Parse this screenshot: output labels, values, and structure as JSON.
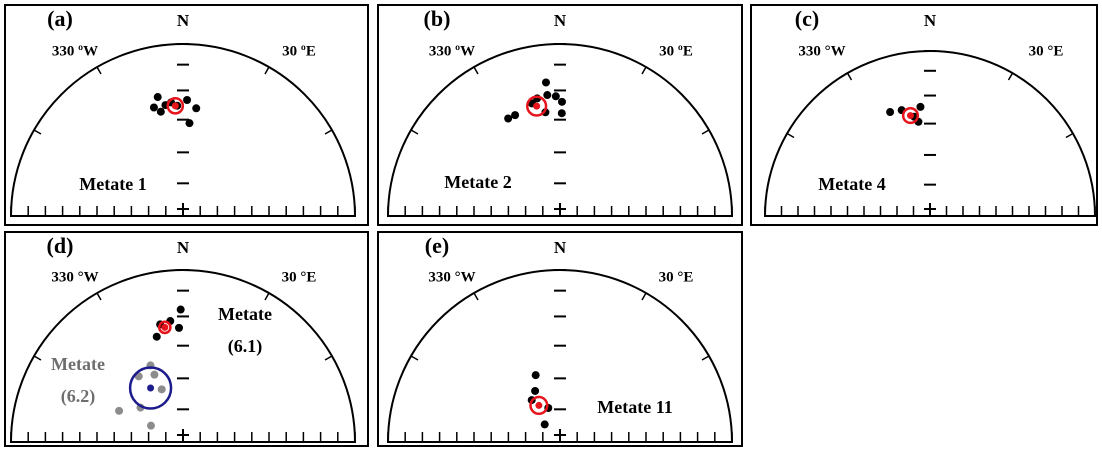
{
  "chart_data": [
    {
      "type": "stereonet",
      "panel_label": "(a)",
      "north_label": "N",
      "west_label": "330 ºW",
      "east_label": "30 ºE",
      "series": [
        {
          "label": [
            "Metate 1"
          ],
          "label_color": "#000000",
          "color": "#000000",
          "x": [
            348,
            345,
            351,
            354,
            357,
            2,
            7,
            4,
            348
          ],
          "values": [
            30,
            35,
            35,
            34,
            36,
            33,
            37,
            45,
            38
          ],
          "mean": {
            "x": 356,
            "value": 36,
            "a95": 4,
            "color": "#e8141c",
            "dot_color": "#e8141c"
          }
        }
      ]
    },
    {
      "type": "stereonet",
      "panel_label": "(b)",
      "north_label": "N",
      "west_label": "330 ºW",
      "east_label": "30 ºE",
      "series": [
        {
          "label": [
            "Metate 2"
          ],
          "label_color": "#000000",
          "color": "#000000",
          "x": [
            354,
            354,
            349,
            358,
            346,
            1,
            1,
            352,
            336,
            332
          ],
          "values": [
            23,
            30,
            31,
            31,
            33,
            34,
            40,
            39,
            36,
            36
          ],
          "mean": {
            "x": 348,
            "value": 35,
            "a95": 5,
            "color": "#e8141c",
            "dot_color": "#e8141c"
          }
        }
      ]
    },
    {
      "type": "stereonet",
      "panel_label": "(c)",
      "north_label": "N",
      "west_label": "330 °W",
      "east_label": "30 °E",
      "series": [
        {
          "label": [
            "Metate 4"
          ],
          "label_color": "#000000",
          "color": "#000000",
          "x": [
            339,
            345,
            355,
            351,
            353
          ],
          "values": [
            33,
            34,
            34,
            39,
            42
          ],
          "mean": {
            "x": 349,
            "value": 38,
            "a95": 4,
            "color": "#e8141c",
            "dot_color": "#e8141c"
          }
        }
      ]
    },
    {
      "type": "stereonet",
      "panel_label": "(d)",
      "north_label": "N",
      "west_label": "330 °W",
      "east_label": "30 °E",
      "series": [
        {
          "label": [
            "Metate",
            "(6.1)"
          ],
          "label_color": "#000000",
          "color": "#000000",
          "x": [
            359,
            349,
            354,
            358,
            346
          ],
          "values": [
            24,
            31,
            30,
            34,
            37
          ],
          "mean": {
            "x": 351,
            "value": 33,
            "a95": 3,
            "color": "#e8141c",
            "dot_color": "#e8141c"
          }
        },
        {
          "label": [
            "Metate",
            "(6.2)"
          ],
          "label_color": "#6e6e6e",
          "color": "#8c8c8c",
          "x": [
            337,
            337,
            326,
            338,
            309,
            296,
            297
          ],
          "values": [
            50,
            55,
            52,
            63,
            64,
            56,
            73
          ],
          "mean": {
            "x": 329,
            "value": 60,
            "a95": 10,
            "color": "#1c1c8c",
            "dot_color": "#1c1c8c"
          }
        }
      ]
    },
    {
      "type": "stereonet",
      "panel_label": "(e)",
      "north_label": "N",
      "west_label": "330 °W",
      "east_label": "30 °E",
      "series": [
        {
          "label": [
            "Metate 11"
          ],
          "label_color": "#000000",
          "color": "#000000",
          "x": [
            340,
            334,
            326,
            341,
            319
          ],
          "values": [
            56,
            63,
            66,
            73,
            79
          ],
          "mean": {
            "x": 330,
            "value": 70,
            "a95": 4,
            "color": "#e8141c",
            "dot_color": "#e8141c"
          }
        }
      ]
    }
  ]
}
